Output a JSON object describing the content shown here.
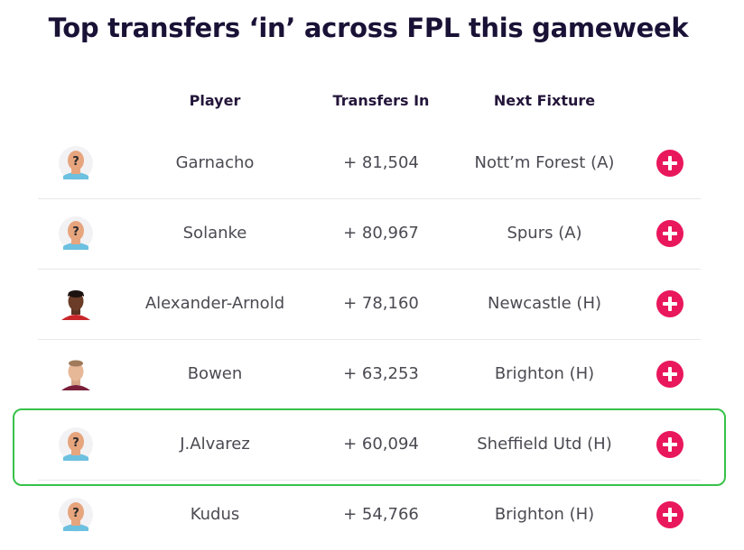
{
  "title": "Top transfers ‘in’ across FPL this gameweek",
  "columns": {
    "player": "Player",
    "transfers_in": "Transfers In",
    "next_fixture": "Next Fixture"
  },
  "rows": [
    {
      "player": "Garnacho",
      "transfers_in": "+ 81,504",
      "next_fixture": "Nott’m Forest (A)",
      "avatar": "placeholder-silhouette-icon"
    },
    {
      "player": "Solanke",
      "transfers_in": "+ 80,967",
      "next_fixture": "Spurs (A)",
      "avatar": "placeholder-silhouette-icon"
    },
    {
      "player": "Alexander-Arnold",
      "transfers_in": "+ 78,160",
      "next_fixture": "Newcastle (H)",
      "avatar": "player-photo-icon"
    },
    {
      "player": "Bowen",
      "transfers_in": "+ 63,253",
      "next_fixture": "Brighton (H)",
      "avatar": "player-photo-icon"
    },
    {
      "player": "J.Alvarez",
      "transfers_in": "+ 60,094",
      "next_fixture": "Sheffield Utd (H)",
      "avatar": "placeholder-silhouette-icon"
    },
    {
      "player": "Kudus",
      "transfers_in": "+ 54,766",
      "next_fixture": "Brighton (H)",
      "avatar": "placeholder-silhouette-icon"
    }
  ],
  "colors": {
    "title": "#1a1236",
    "add_button": "#e9175c",
    "highlight": "#38c24a",
    "divider": "#e8e8ec"
  }
}
